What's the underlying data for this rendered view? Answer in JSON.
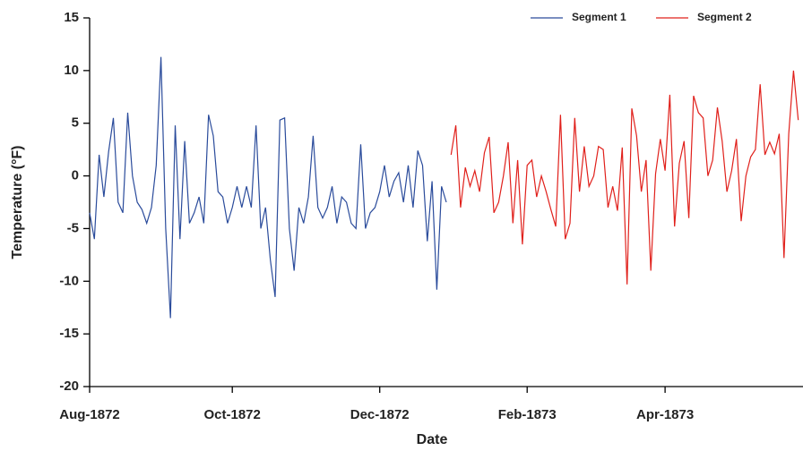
{
  "chart_data": {
    "type": "line",
    "x_label": "Date",
    "y_label": "Temperature (°F)",
    "categories": [
      "Aug-1872",
      null,
      null,
      null,
      null,
      null,
      null,
      null,
      null,
      null,
      null,
      null,
      null,
      null,
      null,
      null,
      null,
      null,
      null,
      null,
      null,
      null,
      null,
      null,
      null,
      null,
      null,
      null,
      null,
      null,
      "Oct-1872",
      null,
      null,
      null,
      null,
      null,
      null,
      null,
      null,
      null,
      null,
      null,
      null,
      null,
      null,
      null,
      null,
      null,
      null,
      null,
      null,
      null,
      null,
      null,
      null,
      null,
      null,
      null,
      null,
      null,
      null,
      "Dec-1872",
      null,
      null,
      null,
      null,
      null,
      null,
      null,
      null,
      null,
      null,
      null,
      null,
      null,
      null,
      null,
      null,
      null,
      null,
      null,
      null,
      null,
      null,
      null,
      null,
      null,
      null,
      null,
      null,
      null,
      null,
      "Feb-1873",
      null,
      null,
      null,
      null,
      null,
      null,
      null,
      null,
      null,
      null,
      null,
      null,
      null,
      null,
      null,
      null,
      null,
      null,
      null,
      null,
      null,
      null,
      null,
      null,
      null,
      null,
      null,
      null,
      "Apr-1873",
      null,
      null,
      null,
      null,
      null,
      null,
      null,
      null,
      null,
      null,
      null,
      null,
      null,
      null,
      null,
      null,
      null,
      null,
      null,
      null,
      null,
      null,
      null,
      null,
      null,
      null,
      null,
      null
    ],
    "series": [
      {
        "name": "Segment 1",
        "color": "#2a4b9b",
        "values": [
          -3.5,
          -6,
          2,
          -2,
          2.3,
          5.5,
          -2.5,
          -3.5,
          6,
          0,
          -2.5,
          -3.2,
          -4.5,
          -3,
          1,
          11.3,
          -5,
          -13.5,
          4.8,
          -6,
          3.3,
          -4.5,
          -3.5,
          -2,
          -4.5,
          5.8,
          3.8,
          -1.5,
          -2,
          -4.5,
          -3,
          -1,
          -3,
          -1,
          -3,
          4.8,
          -5,
          -3,
          -8,
          -11.5,
          5.3,
          5.5,
          -5,
          -9,
          -3,
          -4.5,
          -2,
          3.8,
          -3,
          -4,
          -3,
          -1,
          -4.5,
          -2,
          -2.5,
          -4.5,
          -5,
          3,
          -5,
          -3.5,
          -3,
          -1.5,
          1,
          -2,
          -0.5,
          0.3,
          -2.5,
          1,
          -3,
          2.4,
          1,
          -6.2,
          -0.5,
          -10.8,
          -1,
          -2.5,
          null,
          null,
          null,
          null,
          null,
          null,
          null,
          null,
          null,
          null,
          null,
          null,
          null,
          null,
          null,
          null,
          null,
          null,
          null,
          null,
          null,
          null,
          null,
          null,
          null,
          null,
          null,
          null,
          null,
          null,
          null,
          null,
          null,
          null,
          null,
          null,
          null,
          null,
          null,
          null,
          null,
          null,
          null,
          null,
          null,
          null,
          null,
          null,
          null,
          null,
          null,
          null,
          null,
          null,
          null,
          null,
          null,
          null,
          null,
          null,
          null,
          null,
          null,
          null,
          null,
          null,
          null,
          null,
          null,
          null,
          null,
          null,
          null,
          null
        ]
      },
      {
        "name": "Segment 2",
        "color": "#e0201b",
        "values": [
          null,
          null,
          null,
          null,
          null,
          null,
          null,
          null,
          null,
          null,
          null,
          null,
          null,
          null,
          null,
          null,
          null,
          null,
          null,
          null,
          null,
          null,
          null,
          null,
          null,
          null,
          null,
          null,
          null,
          null,
          null,
          null,
          null,
          null,
          null,
          null,
          null,
          null,
          null,
          null,
          null,
          null,
          null,
          null,
          null,
          null,
          null,
          null,
          null,
          null,
          null,
          null,
          null,
          null,
          null,
          null,
          null,
          null,
          null,
          null,
          null,
          null,
          null,
          null,
          null,
          null,
          null,
          null,
          null,
          null,
          null,
          null,
          null,
          null,
          null,
          null,
          2,
          4.8,
          -3,
          0.8,
          -1,
          0.5,
          -1.5,
          2.2,
          3.7,
          -3.5,
          -2.5,
          0,
          3.2,
          -4.5,
          1.5,
          -6.5,
          1,
          1.5,
          -2,
          0,
          -1.5,
          -3.2,
          -4.8,
          5.8,
          -6,
          -4.5,
          5.5,
          -1.5,
          2.8,
          -1,
          0,
          2.8,
          2.5,
          -3,
          -1,
          -3.3,
          2.7,
          -10.3,
          6.4,
          3.8,
          -1.5,
          1.5,
          -9,
          0.2,
          3.5,
          0.5,
          7.7,
          -4.8,
          1.2,
          3.3,
          -4,
          7.6,
          6,
          5.5,
          0,
          1.5,
          6.5,
          3.3,
          -1.5,
          0.5,
          3.5,
          -4.3,
          0,
          1.8,
          2.5,
          8.7,
          2,
          3.2,
          2.1,
          4,
          -7.8,
          4,
          10,
          5.3
        ]
      }
    ],
    "ylim": [
      -20,
      15
    ],
    "yticks": [
      -20,
      -15,
      -10,
      -5,
      0,
      5,
      10,
      15
    ],
    "legend": "top-right"
  }
}
